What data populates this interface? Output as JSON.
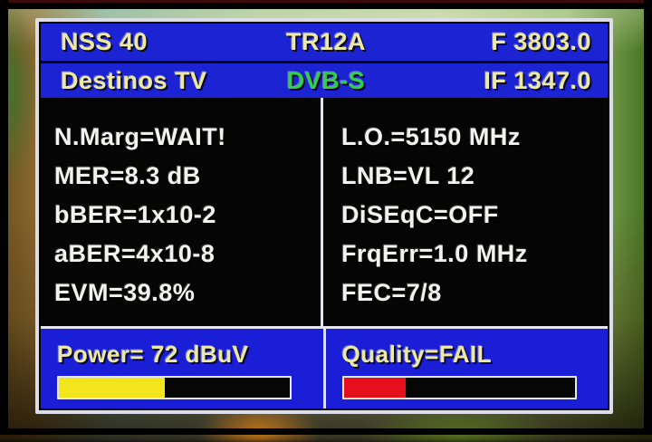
{
  "header": {
    "satellite": "NSS 40",
    "transponder": "TR12A",
    "frequency": "F 3803.0",
    "channel": "Destinos TV",
    "system": "DVB-S",
    "if_frequency": "IF 1347.0"
  },
  "left_panel": {
    "rows": [
      "N.Marg=WAIT!",
      "MER=8.3 dB",
      "bBER=1x10-2",
      "aBER=4x10-8",
      "EVM=39.8%"
    ]
  },
  "right_panel": {
    "rows": [
      "L.O.=5150 MHz",
      "LNB=VL 12",
      "DiSEqC=OFF",
      "FrqErr=1.0 MHz",
      "FEC=7/8"
    ]
  },
  "power": {
    "label": "Power= 72 dBuV",
    "bar_percent": 46,
    "bar_color": "#f2e51c"
  },
  "quality": {
    "label": "Quality=FAIL",
    "bar_percent": 27,
    "bar_color": "#e6101c"
  },
  "colors": {
    "header_blue": "#1c23d2",
    "bottom_blue": "#1a1ed6",
    "panel_black": "#050505",
    "border_white": "#dddde8",
    "text_yellow": "#ede9a2",
    "text_white": "#f2f2ee",
    "dvb_green": "#2ed04a"
  }
}
